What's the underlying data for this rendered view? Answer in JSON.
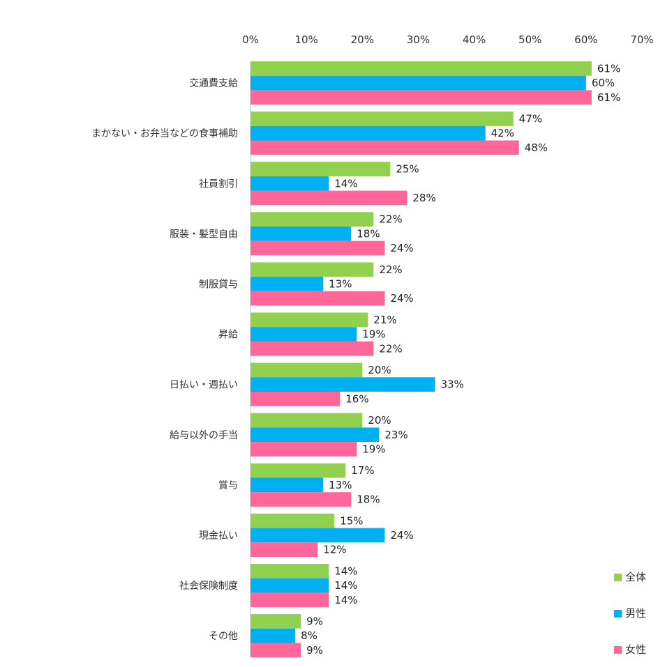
{
  "chart_data": {
    "type": "bar",
    "orientation": "horizontal",
    "title": "",
    "xlabel": "",
    "ylabel": "",
    "xlim": [
      0,
      70
    ],
    "x_ticks": [
      "0%",
      "10%",
      "20%",
      "30%",
      "40%",
      "50%",
      "60%",
      "70%"
    ],
    "x_tick_values": [
      0,
      10,
      20,
      30,
      40,
      50,
      60,
      70
    ],
    "grid": false,
    "legend": "bottom-right",
    "categories": [
      "交通費支給",
      "まかない・お弁当などの食事補助",
      "社員割引",
      "服装・髪型自由",
      "制服貸与",
      "昇給",
      "日払い・週払い",
      "給与以外の手当",
      "賞与",
      "現金払い",
      "社会保険制度",
      "その他"
    ],
    "series": [
      {
        "name": "全体",
        "color": "#92d050",
        "values": [
          61,
          47,
          25,
          22,
          22,
          21,
          20,
          20,
          17,
          15,
          14,
          9
        ],
        "labels": [
          "61%",
          "47%",
          "25%",
          "22%",
          "22%",
          "21%",
          "20%",
          "20%",
          "17%",
          "15%",
          "14%",
          "9%"
        ]
      },
      {
        "name": "男性",
        "color": "#00b0f0",
        "values": [
          60,
          42,
          14,
          18,
          13,
          19,
          33,
          23,
          13,
          24,
          14,
          8
        ],
        "labels": [
          "60%",
          "42%",
          "14%",
          "18%",
          "13%",
          "19%",
          "33%",
          "23%",
          "13%",
          "24%",
          "14%",
          "8%"
        ]
      },
      {
        "name": "女性",
        "color": "#ff6699",
        "values": [
          61,
          48,
          28,
          24,
          24,
          22,
          16,
          19,
          18,
          12,
          14,
          9
        ],
        "labels": [
          "61%",
          "48%",
          "28%",
          "24%",
          "24%",
          "22%",
          "16%",
          "19%",
          "18%",
          "12%",
          "14%",
          "9%"
        ]
      }
    ]
  }
}
